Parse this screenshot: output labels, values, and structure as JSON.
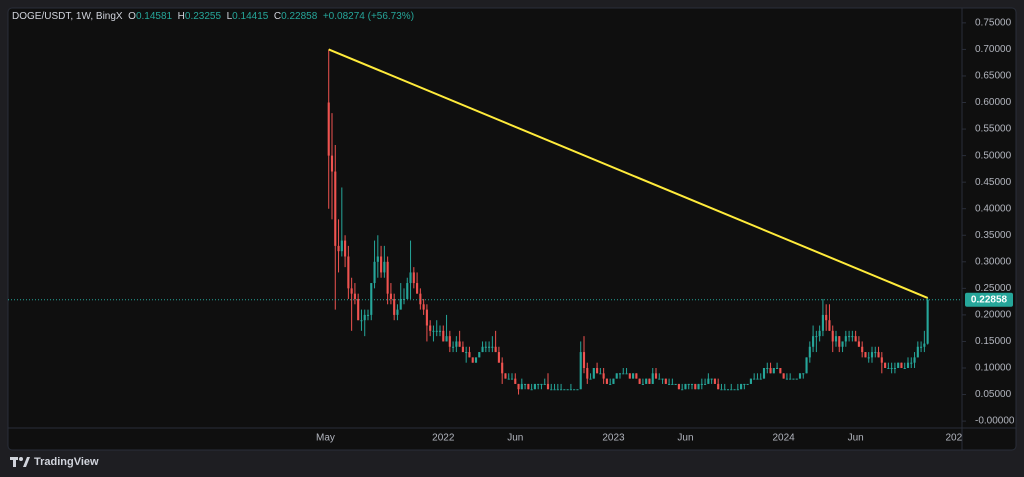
{
  "header": {
    "symbol": "DOGE/USDT, 1W, BingX",
    "ohlc_labels": [
      "O",
      "H",
      "L",
      "C"
    ],
    "change": "+0.08274 (+56.73%)"
  },
  "chart_data": {
    "type": "candlestick",
    "up_color": "#26a69a",
    "down_color": "#ef5350",
    "grid": false,
    "ylim": [
      -0.013,
      0.778
    ],
    "xlim": [
      -98,
      193.5
    ],
    "yticks": [
      {
        "value": 0.75,
        "label": "0.75000"
      },
      {
        "value": 0.7,
        "label": "0.70000"
      },
      {
        "value": 0.65,
        "label": "0.65000"
      },
      {
        "value": 0.6,
        "label": "0.60000"
      },
      {
        "value": 0.55,
        "label": "0.55000"
      },
      {
        "value": 0.5,
        "label": "0.50000"
      },
      {
        "value": 0.45,
        "label": "0.45000"
      },
      {
        "value": 0.4,
        "label": "0.40000"
      },
      {
        "value": 0.35,
        "label": "0.35000"
      },
      {
        "value": 0.3,
        "label": "0.30000"
      },
      {
        "value": 0.25,
        "label": "0.25000"
      },
      {
        "value": 0.2,
        "label": "0.20000"
      },
      {
        "value": 0.15,
        "label": "0.15000"
      },
      {
        "value": 0.1,
        "label": "0.10000"
      },
      {
        "value": 0.05,
        "label": "0.05000"
      },
      {
        "value": 0,
        "label": "-0.00000"
      }
    ],
    "xticks": [
      {
        "value": -1,
        "label": "May"
      },
      {
        "value": 35,
        "label": "2022"
      },
      {
        "value": 57,
        "label": "Jun"
      },
      {
        "value": 87,
        "label": "2023"
      },
      {
        "value": 109,
        "label": "Jun"
      },
      {
        "value": 139,
        "label": "2024"
      },
      {
        "value": 161,
        "label": "Jun"
      },
      {
        "value": 191,
        "label": "202"
      }
    ],
    "trendline": {
      "color": "#ffeb3b",
      "points": [
        [
          0,
          0.7
        ],
        [
          183,
          0.232
        ]
      ]
    },
    "ohlc": [
      [
        0.6,
        0.7,
        0.4,
        0.5
      ],
      [
        0.5,
        0.58,
        0.38,
        0.47
      ],
      [
        0.47,
        0.52,
        0.21,
        0.33
      ],
      [
        0.33,
        0.38,
        0.28,
        0.32
      ],
      [
        0.32,
        0.44,
        0.31,
        0.34
      ],
      [
        0.34,
        0.35,
        0.29,
        0.31
      ],
      [
        0.31,
        0.33,
        0.23,
        0.25
      ],
      [
        0.25,
        0.27,
        0.17,
        0.24
      ],
      [
        0.24,
        0.26,
        0.22,
        0.23
      ],
      [
        0.23,
        0.24,
        0.19,
        0.19
      ],
      [
        0.19,
        0.21,
        0.17,
        0.19
      ],
      [
        0.19,
        0.21,
        0.16,
        0.2
      ],
      [
        0.2,
        0.21,
        0.19,
        0.2
      ],
      [
        0.2,
        0.26,
        0.19,
        0.26
      ],
      [
        0.26,
        0.34,
        0.25,
        0.3
      ],
      [
        0.3,
        0.35,
        0.27,
        0.31
      ],
      [
        0.31,
        0.33,
        0.27,
        0.28
      ],
      [
        0.28,
        0.33,
        0.27,
        0.3
      ],
      [
        0.3,
        0.31,
        0.22,
        0.24
      ],
      [
        0.24,
        0.26,
        0.22,
        0.23
      ],
      [
        0.23,
        0.24,
        0.19,
        0.2
      ],
      [
        0.2,
        0.22,
        0.19,
        0.21
      ],
      [
        0.21,
        0.26,
        0.21,
        0.23
      ],
      [
        0.23,
        0.25,
        0.22,
        0.23
      ],
      [
        0.23,
        0.27,
        0.23,
        0.26
      ],
      [
        0.26,
        0.34,
        0.23,
        0.28
      ],
      [
        0.28,
        0.29,
        0.25,
        0.26
      ],
      [
        0.26,
        0.28,
        0.24,
        0.24
      ],
      [
        0.24,
        0.25,
        0.21,
        0.22
      ],
      [
        0.22,
        0.23,
        0.2,
        0.21
      ],
      [
        0.21,
        0.22,
        0.15,
        0.18
      ],
      [
        0.18,
        0.19,
        0.16,
        0.17
      ],
      [
        0.17,
        0.18,
        0.15,
        0.17
      ],
      [
        0.17,
        0.19,
        0.16,
        0.17
      ],
      [
        0.17,
        0.18,
        0.16,
        0.17
      ],
      [
        0.17,
        0.18,
        0.15,
        0.15
      ],
      [
        0.15,
        0.2,
        0.15,
        0.16
      ],
      [
        0.16,
        0.17,
        0.13,
        0.14
      ],
      [
        0.14,
        0.15,
        0.13,
        0.14
      ],
      [
        0.14,
        0.16,
        0.13,
        0.15
      ],
      [
        0.15,
        0.17,
        0.14,
        0.14
      ],
      [
        0.14,
        0.15,
        0.13,
        0.13
      ],
      [
        0.13,
        0.14,
        0.11,
        0.13
      ],
      [
        0.13,
        0.14,
        0.12,
        0.12
      ],
      [
        0.12,
        0.12,
        0.11,
        0.11
      ],
      [
        0.11,
        0.12,
        0.11,
        0.12
      ],
      [
        0.12,
        0.13,
        0.12,
        0.13
      ],
      [
        0.13,
        0.15,
        0.13,
        0.14
      ],
      [
        0.14,
        0.15,
        0.13,
        0.14
      ],
      [
        0.14,
        0.15,
        0.13,
        0.14
      ],
      [
        0.14,
        0.16,
        0.13,
        0.14
      ],
      [
        0.14,
        0.17,
        0.13,
        0.13
      ],
      [
        0.13,
        0.14,
        0.11,
        0.11
      ],
      [
        0.11,
        0.12,
        0.07,
        0.09
      ],
      [
        0.09,
        0.09,
        0.08,
        0.08
      ],
      [
        0.08,
        0.09,
        0.08,
        0.08
      ],
      [
        0.08,
        0.09,
        0.08,
        0.08
      ],
      [
        0.08,
        0.09,
        0.07,
        0.07
      ],
      [
        0.07,
        0.07,
        0.05,
        0.06
      ],
      [
        0.06,
        0.08,
        0.06,
        0.07
      ],
      [
        0.07,
        0.07,
        0.06,
        0.07
      ],
      [
        0.07,
        0.07,
        0.06,
        0.06
      ],
      [
        0.06,
        0.07,
        0.06,
        0.06
      ],
      [
        0.06,
        0.07,
        0.06,
        0.07
      ],
      [
        0.07,
        0.07,
        0.06,
        0.07
      ],
      [
        0.07,
        0.07,
        0.06,
        0.07
      ],
      [
        0.07,
        0.08,
        0.07,
        0.07
      ],
      [
        0.07,
        0.09,
        0.06,
        0.06
      ],
      [
        0.06,
        0.07,
        0.06,
        0.06
      ],
      [
        0.06,
        0.07,
        0.06,
        0.06
      ],
      [
        0.06,
        0.07,
        0.06,
        0.06
      ],
      [
        0.06,
        0.07,
        0.06,
        0.06
      ],
      [
        0.06,
        0.06,
        0.06,
        0.06
      ],
      [
        0.06,
        0.06,
        0.06,
        0.06
      ],
      [
        0.06,
        0.07,
        0.06,
        0.06
      ],
      [
        0.06,
        0.06,
        0.06,
        0.06
      ],
      [
        0.06,
        0.06,
        0.06,
        0.06
      ],
      [
        0.06,
        0.15,
        0.06,
        0.13
      ],
      [
        0.13,
        0.16,
        0.09,
        0.1
      ],
      [
        0.1,
        0.11,
        0.07,
        0.08
      ],
      [
        0.08,
        0.09,
        0.08,
        0.08
      ],
      [
        0.08,
        0.1,
        0.08,
        0.1
      ],
      [
        0.1,
        0.11,
        0.09,
        0.09
      ],
      [
        0.09,
        0.1,
        0.09,
        0.09
      ],
      [
        0.09,
        0.1,
        0.07,
        0.08
      ],
      [
        0.08,
        0.08,
        0.07,
        0.07
      ],
      [
        0.07,
        0.08,
        0.07,
        0.07
      ],
      [
        0.07,
        0.08,
        0.07,
        0.08
      ],
      [
        0.08,
        0.09,
        0.08,
        0.09
      ],
      [
        0.09,
        0.09,
        0.08,
        0.09
      ],
      [
        0.09,
        0.1,
        0.09,
        0.09
      ],
      [
        0.09,
        0.1,
        0.09,
        0.09
      ],
      [
        0.09,
        0.09,
        0.08,
        0.08
      ],
      [
        0.08,
        0.09,
        0.08,
        0.09
      ],
      [
        0.09,
        0.09,
        0.08,
        0.08
      ],
      [
        0.08,
        0.08,
        0.07,
        0.07
      ],
      [
        0.07,
        0.08,
        0.07,
        0.07
      ],
      [
        0.07,
        0.08,
        0.07,
        0.08
      ],
      [
        0.08,
        0.08,
        0.07,
        0.07
      ],
      [
        0.07,
        0.1,
        0.07,
        0.09
      ],
      [
        0.09,
        0.1,
        0.08,
        0.08
      ],
      [
        0.08,
        0.09,
        0.08,
        0.08
      ],
      [
        0.08,
        0.08,
        0.07,
        0.08
      ],
      [
        0.08,
        0.08,
        0.07,
        0.07
      ],
      [
        0.07,
        0.08,
        0.07,
        0.07
      ],
      [
        0.07,
        0.08,
        0.07,
        0.07
      ],
      [
        0.07,
        0.07,
        0.07,
        0.07
      ],
      [
        0.07,
        0.07,
        0.06,
        0.06
      ],
      [
        0.06,
        0.07,
        0.06,
        0.06
      ],
      [
        0.06,
        0.07,
        0.06,
        0.07
      ],
      [
        0.07,
        0.07,
        0.06,
        0.07
      ],
      [
        0.07,
        0.07,
        0.06,
        0.07
      ],
      [
        0.07,
        0.07,
        0.06,
        0.06
      ],
      [
        0.06,
        0.07,
        0.06,
        0.07
      ],
      [
        0.07,
        0.08,
        0.06,
        0.07
      ],
      [
        0.07,
        0.08,
        0.07,
        0.07
      ],
      [
        0.07,
        0.09,
        0.07,
        0.08
      ],
      [
        0.08,
        0.08,
        0.07,
        0.08
      ],
      [
        0.08,
        0.08,
        0.07,
        0.07
      ],
      [
        0.07,
        0.08,
        0.06,
        0.06
      ],
      [
        0.06,
        0.07,
        0.06,
        0.06
      ],
      [
        0.06,
        0.07,
        0.06,
        0.06
      ],
      [
        0.06,
        0.06,
        0.06,
        0.06
      ],
      [
        0.06,
        0.07,
        0.06,
        0.06
      ],
      [
        0.06,
        0.06,
        0.06,
        0.06
      ],
      [
        0.06,
        0.07,
        0.06,
        0.06
      ],
      [
        0.06,
        0.07,
        0.06,
        0.07
      ],
      [
        0.07,
        0.07,
        0.06,
        0.07
      ],
      [
        0.07,
        0.07,
        0.07,
        0.07
      ],
      [
        0.07,
        0.08,
        0.07,
        0.08
      ],
      [
        0.08,
        0.09,
        0.08,
        0.08
      ],
      [
        0.08,
        0.09,
        0.08,
        0.08
      ],
      [
        0.08,
        0.09,
        0.08,
        0.08
      ],
      [
        0.08,
        0.1,
        0.08,
        0.1
      ],
      [
        0.1,
        0.11,
        0.09,
        0.1
      ],
      [
        0.1,
        0.11,
        0.09,
        0.09
      ],
      [
        0.09,
        0.1,
        0.09,
        0.1
      ],
      [
        0.1,
        0.11,
        0.1,
        0.1
      ],
      [
        0.1,
        0.1,
        0.09,
        0.09
      ],
      [
        0.09,
        0.09,
        0.08,
        0.08
      ],
      [
        0.08,
        0.09,
        0.08,
        0.08
      ],
      [
        0.08,
        0.09,
        0.08,
        0.08
      ],
      [
        0.08,
        0.08,
        0.08,
        0.08
      ],
      [
        0.08,
        0.08,
        0.08,
        0.08
      ],
      [
        0.08,
        0.09,
        0.08,
        0.09
      ],
      [
        0.09,
        0.09,
        0.08,
        0.09
      ],
      [
        0.09,
        0.12,
        0.09,
        0.12
      ],
      [
        0.12,
        0.15,
        0.11,
        0.14
      ],
      [
        0.14,
        0.18,
        0.13,
        0.16
      ],
      [
        0.16,
        0.17,
        0.13,
        0.16
      ],
      [
        0.16,
        0.18,
        0.15,
        0.17
      ],
      [
        0.17,
        0.23,
        0.16,
        0.2
      ],
      [
        0.2,
        0.22,
        0.17,
        0.19
      ],
      [
        0.19,
        0.22,
        0.17,
        0.17
      ],
      [
        0.17,
        0.18,
        0.13,
        0.15
      ],
      [
        0.15,
        0.17,
        0.14,
        0.16
      ],
      [
        0.16,
        0.16,
        0.13,
        0.14
      ],
      [
        0.14,
        0.15,
        0.13,
        0.15
      ],
      [
        0.15,
        0.17,
        0.14,
        0.16
      ],
      [
        0.16,
        0.17,
        0.15,
        0.16
      ],
      [
        0.16,
        0.17,
        0.15,
        0.16
      ],
      [
        0.16,
        0.17,
        0.15,
        0.15
      ],
      [
        0.15,
        0.16,
        0.14,
        0.14
      ],
      [
        0.14,
        0.15,
        0.12,
        0.13
      ],
      [
        0.13,
        0.13,
        0.12,
        0.12
      ],
      [
        0.12,
        0.13,
        0.11,
        0.12
      ],
      [
        0.12,
        0.14,
        0.11,
        0.13
      ],
      [
        0.13,
        0.14,
        0.12,
        0.13
      ],
      [
        0.13,
        0.14,
        0.12,
        0.12
      ],
      [
        0.12,
        0.13,
        0.09,
        0.11
      ],
      [
        0.11,
        0.11,
        0.1,
        0.1
      ],
      [
        0.1,
        0.11,
        0.1,
        0.1
      ],
      [
        0.1,
        0.11,
        0.09,
        0.1
      ],
      [
        0.1,
        0.11,
        0.09,
        0.1
      ],
      [
        0.1,
        0.11,
        0.1,
        0.11
      ],
      [
        0.11,
        0.11,
        0.1,
        0.1
      ],
      [
        0.1,
        0.11,
        0.1,
        0.1
      ],
      [
        0.1,
        0.12,
        0.1,
        0.11
      ],
      [
        0.11,
        0.12,
        0.1,
        0.11
      ],
      [
        0.11,
        0.13,
        0.1,
        0.12
      ],
      [
        0.12,
        0.15,
        0.12,
        0.14
      ],
      [
        0.14,
        0.15,
        0.13,
        0.14
      ],
      [
        0.14,
        0.17,
        0.13,
        0.146
      ],
      [
        0.14581,
        0.23255,
        0.14415,
        0.22858
      ]
    ]
  },
  "footer": {
    "brand": "TradingView"
  }
}
